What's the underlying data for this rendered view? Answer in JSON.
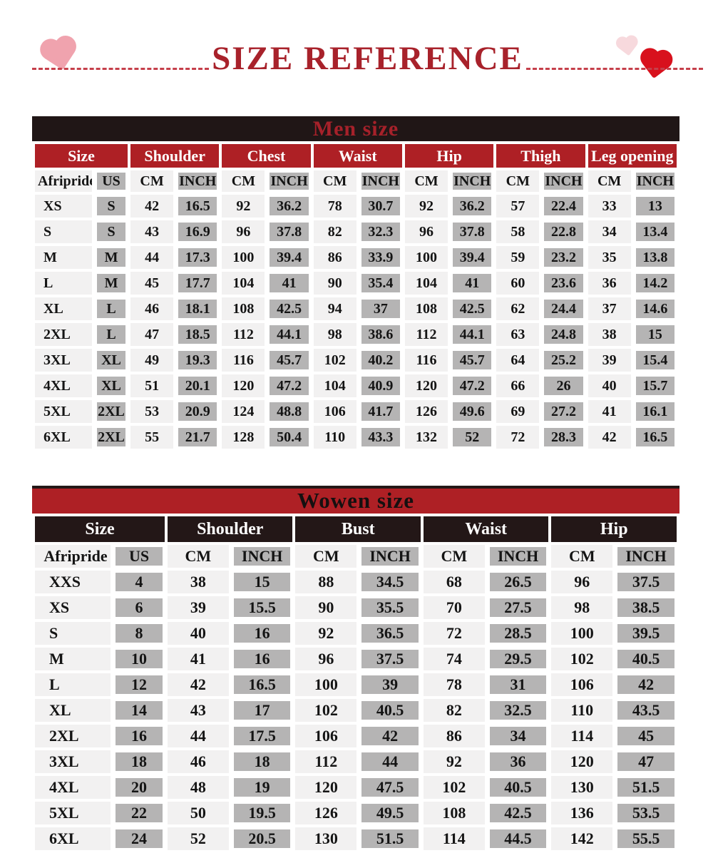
{
  "header": {
    "title": "SIZE REFERENCE"
  },
  "decorations": {
    "left_heart": "pink-heart",
    "right_small_heart": "light-pink-heart",
    "right_big_heart": "red-heart"
  },
  "colors": {
    "title_red": "#A8222B",
    "dash_red": "#C5404B",
    "men_bar_background": "#201616",
    "men_bar_text": "#A6212A",
    "men_group_header_red": "#AE2025",
    "women_bar_red": "#AE2025",
    "women_group_header_dark": "#231717",
    "cell_light": "#F2F1F1",
    "cell_gray": "#B5B4B4"
  },
  "men_table": {
    "title": "Men size",
    "group_headers": [
      "Size",
      "Shoulder",
      "Chest",
      "Waist",
      "Hip",
      "Thigh",
      "Leg opening"
    ],
    "subheader": [
      "Afripride",
      "US",
      "CM",
      "INCH",
      "CM",
      "INCH",
      "CM",
      "INCH",
      "CM",
      "INCH",
      "CM",
      "INCH",
      "CM",
      "INCH"
    ],
    "rows": [
      [
        "XS",
        "S",
        "42",
        "16.5",
        "92",
        "36.2",
        "78",
        "30.7",
        "92",
        "36.2",
        "57",
        "22.4",
        "33",
        "13"
      ],
      [
        "S",
        "S",
        "43",
        "16.9",
        "96",
        "37.8",
        "82",
        "32.3",
        "96",
        "37.8",
        "58",
        "22.8",
        "34",
        "13.4"
      ],
      [
        "M",
        "M",
        "44",
        "17.3",
        "100",
        "39.4",
        "86",
        "33.9",
        "100",
        "39.4",
        "59",
        "23.2",
        "35",
        "13.8"
      ],
      [
        "L",
        "M",
        "45",
        "17.7",
        "104",
        "41",
        "90",
        "35.4",
        "104",
        "41",
        "60",
        "23.6",
        "36",
        "14.2"
      ],
      [
        "XL",
        "L",
        "46",
        "18.1",
        "108",
        "42.5",
        "94",
        "37",
        "108",
        "42.5",
        "62",
        "24.4",
        "37",
        "14.6"
      ],
      [
        "2XL",
        "L",
        "47",
        "18.5",
        "112",
        "44.1",
        "98",
        "38.6",
        "112",
        "44.1",
        "63",
        "24.8",
        "38",
        "15"
      ],
      [
        "3XL",
        "XL",
        "49",
        "19.3",
        "116",
        "45.7",
        "102",
        "40.2",
        "116",
        "45.7",
        "64",
        "25.2",
        "39",
        "15.4"
      ],
      [
        "4XL",
        "XL",
        "51",
        "20.1",
        "120",
        "47.2",
        "104",
        "40.9",
        "120",
        "47.2",
        "66",
        "26",
        "40",
        "15.7"
      ],
      [
        "5XL",
        "2XL",
        "53",
        "20.9",
        "124",
        "48.8",
        "106",
        "41.7",
        "126",
        "49.6",
        "69",
        "27.2",
        "41",
        "16.1"
      ],
      [
        "6XL",
        "2XL",
        "55",
        "21.7",
        "128",
        "50.4",
        "110",
        "43.3",
        "132",
        "52",
        "72",
        "28.3",
        "42",
        "16.5"
      ]
    ]
  },
  "women_table": {
    "title": "Wowen size",
    "group_headers": [
      "Size",
      "Shoulder",
      "Bust",
      "Waist",
      "Hip"
    ],
    "subheader": [
      "Afripride",
      "US",
      "CM",
      "INCH",
      "CM",
      "INCH",
      "CM",
      "INCH",
      "CM",
      "INCH"
    ],
    "rows": [
      [
        "XXS",
        "4",
        "38",
        "15",
        "88",
        "34.5",
        "68",
        "26.5",
        "96",
        "37.5"
      ],
      [
        "XS",
        "6",
        "39",
        "15.5",
        "90",
        "35.5",
        "70",
        "27.5",
        "98",
        "38.5"
      ],
      [
        "S",
        "8",
        "40",
        "16",
        "92",
        "36.5",
        "72",
        "28.5",
        "100",
        "39.5"
      ],
      [
        "M",
        "10",
        "41",
        "16",
        "96",
        "37.5",
        "74",
        "29.5",
        "102",
        "40.5"
      ],
      [
        "L",
        "12",
        "42",
        "16.5",
        "100",
        "39",
        "78",
        "31",
        "106",
        "42"
      ],
      [
        "XL",
        "14",
        "43",
        "17",
        "102",
        "40.5",
        "82",
        "32.5",
        "110",
        "43.5"
      ],
      [
        "2XL",
        "16",
        "44",
        "17.5",
        "106",
        "42",
        "86",
        "34",
        "114",
        "45"
      ],
      [
        "3XL",
        "18",
        "46",
        "18",
        "112",
        "44",
        "92",
        "36",
        "120",
        "47"
      ],
      [
        "4XL",
        "20",
        "48",
        "19",
        "120",
        "47.5",
        "102",
        "40.5",
        "130",
        "51.5"
      ],
      [
        "5XL",
        "22",
        "50",
        "19.5",
        "126",
        "49.5",
        "108",
        "42.5",
        "136",
        "53.5"
      ],
      [
        "6XL",
        "24",
        "52",
        "20.5",
        "130",
        "51.5",
        "114",
        "44.5",
        "142",
        "55.5"
      ]
    ]
  }
}
